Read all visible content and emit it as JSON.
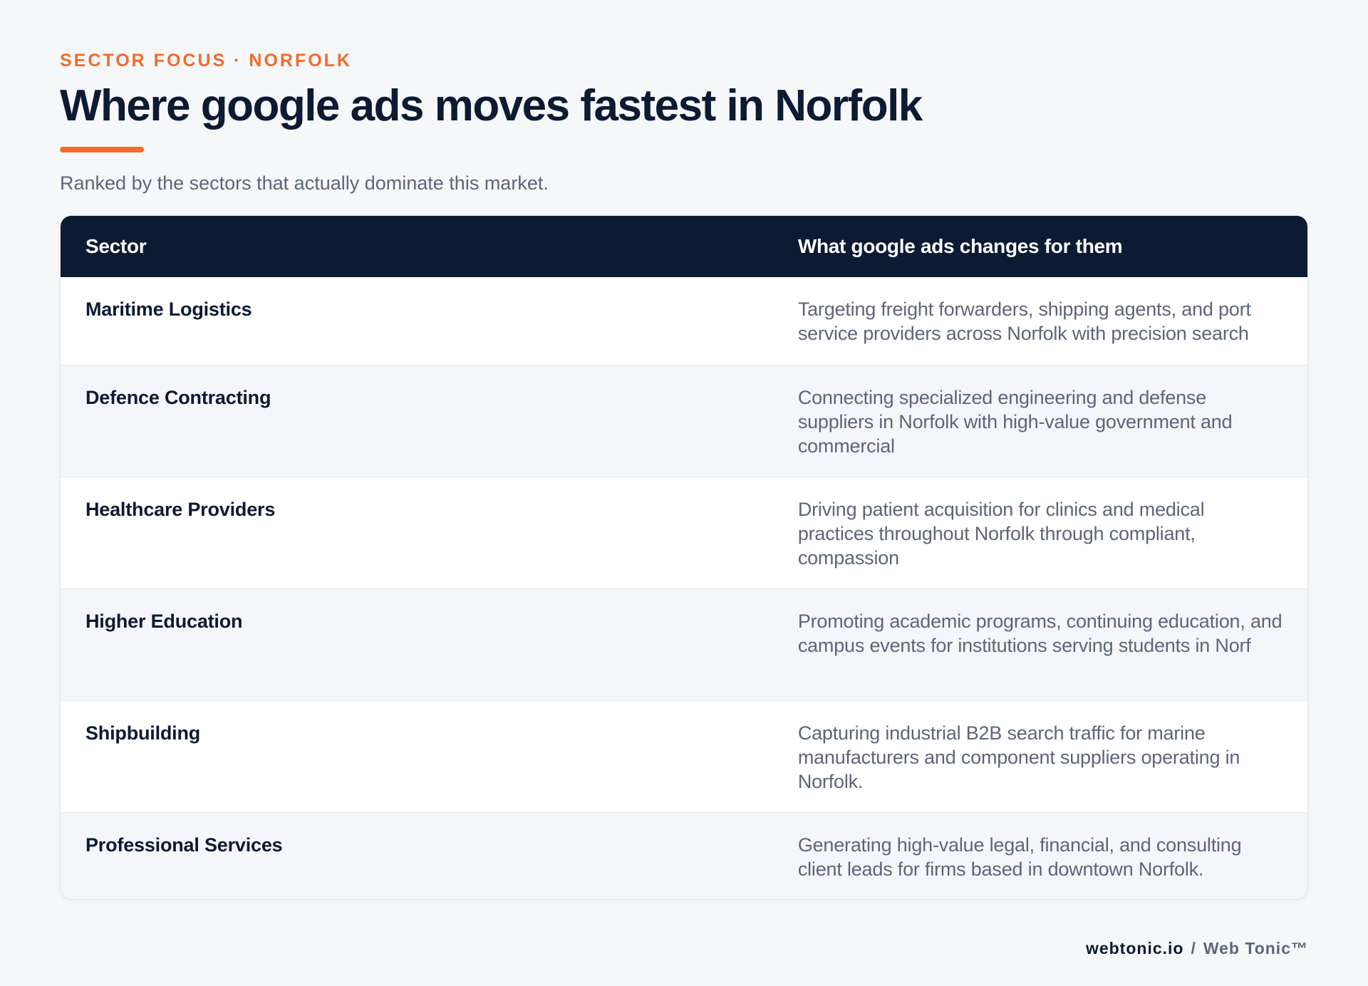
{
  "header": {
    "eyebrow": "SECTOR FOCUS · NORFOLK",
    "title": "Where google ads moves fastest in Norfolk",
    "subtitle": "Ranked by the sectors that actually dominate this market."
  },
  "table": {
    "columns": [
      "Sector",
      "What google ads changes for them"
    ],
    "rows": [
      {
        "sector": "Maritime Logistics",
        "change": "Targeting freight forwarders, shipping agents, and port service providers across Norfolk with precision search"
      },
      {
        "sector": "Defence Contracting",
        "change": "Connecting specialized engineering and defense suppliers in Norfolk with high-value government and commercial"
      },
      {
        "sector": "Healthcare Providers",
        "change": "Driving patient acquisition for clinics and medical practices throughout Norfolk through compliant, compassion"
      },
      {
        "sector": "Higher Education",
        "change": "Promoting academic programs, continuing education, and campus events for institutions serving students in Norf"
      },
      {
        "sector": "Shipbuilding",
        "change": "Capturing industrial B2B search traffic for marine manufacturers and component suppliers operating in Norfolk."
      },
      {
        "sector": "Professional Services",
        "change": "Generating high-value legal, financial, and consulting client leads for firms based in downtown Norfolk."
      }
    ]
  },
  "footer": {
    "domain": "webtonic.io",
    "separator": "/",
    "brand": "Web Tonic™"
  },
  "colors": {
    "accent": "#f26b2b",
    "navy": "#0c1a33",
    "muted": "#5b6679",
    "background": "#f6f7f9"
  }
}
